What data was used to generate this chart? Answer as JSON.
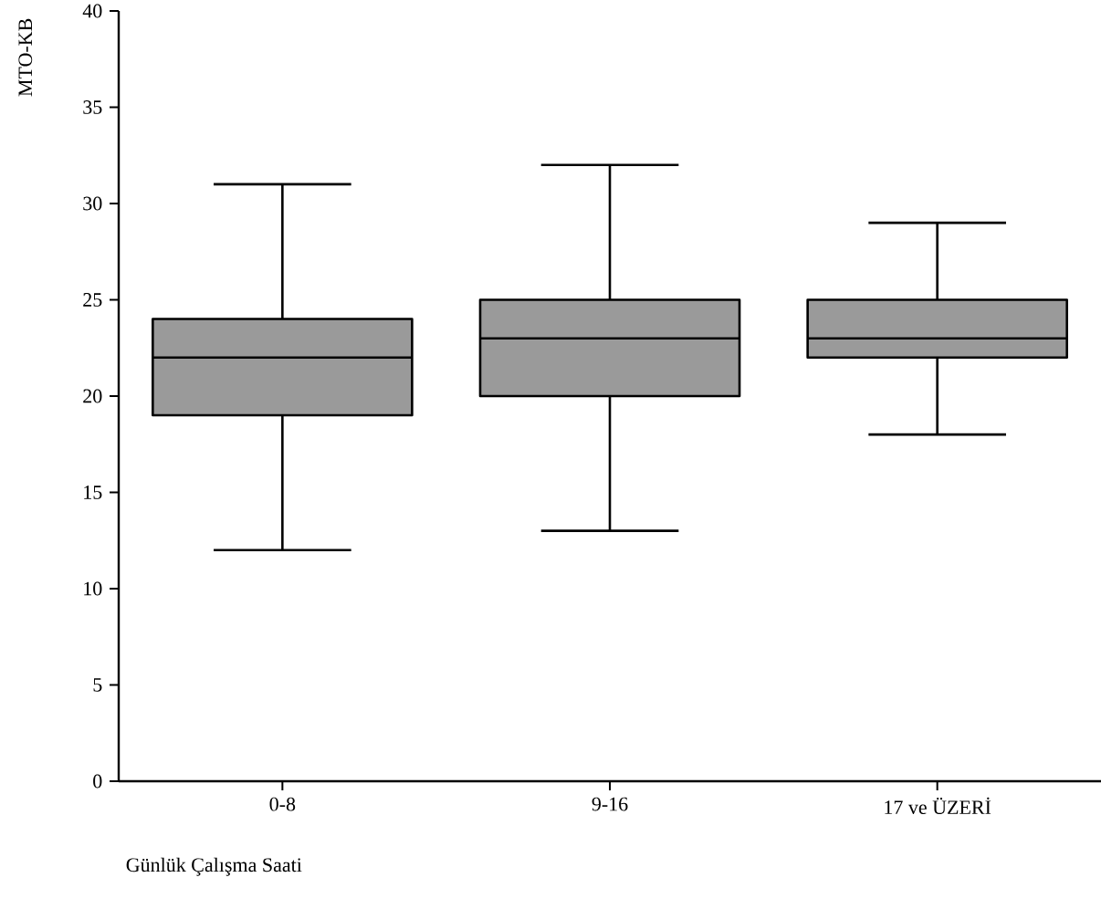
{
  "chart_data": {
    "type": "box",
    "xlabel": "Günlük Çalışma Saati",
    "ylabel": "MTO-KB",
    "categories": [
      "0-8",
      "9-16",
      "17 ve ÜZERİ"
    ],
    "color": "#9a9a9a",
    "ylim": [
      0,
      40
    ],
    "yticks": [
      0,
      5,
      10,
      15,
      20,
      25,
      30,
      35,
      40
    ],
    "grid": false,
    "boxes": [
      {
        "low": 12,
        "q1": 19,
        "median": 22,
        "q3": 24,
        "high": 31
      },
      {
        "low": 13,
        "q1": 20,
        "median": 23,
        "q3": 25,
        "high": 32
      },
      {
        "low": 18,
        "q1": 22,
        "median": 23,
        "q3": 25,
        "high": 29
      }
    ]
  }
}
